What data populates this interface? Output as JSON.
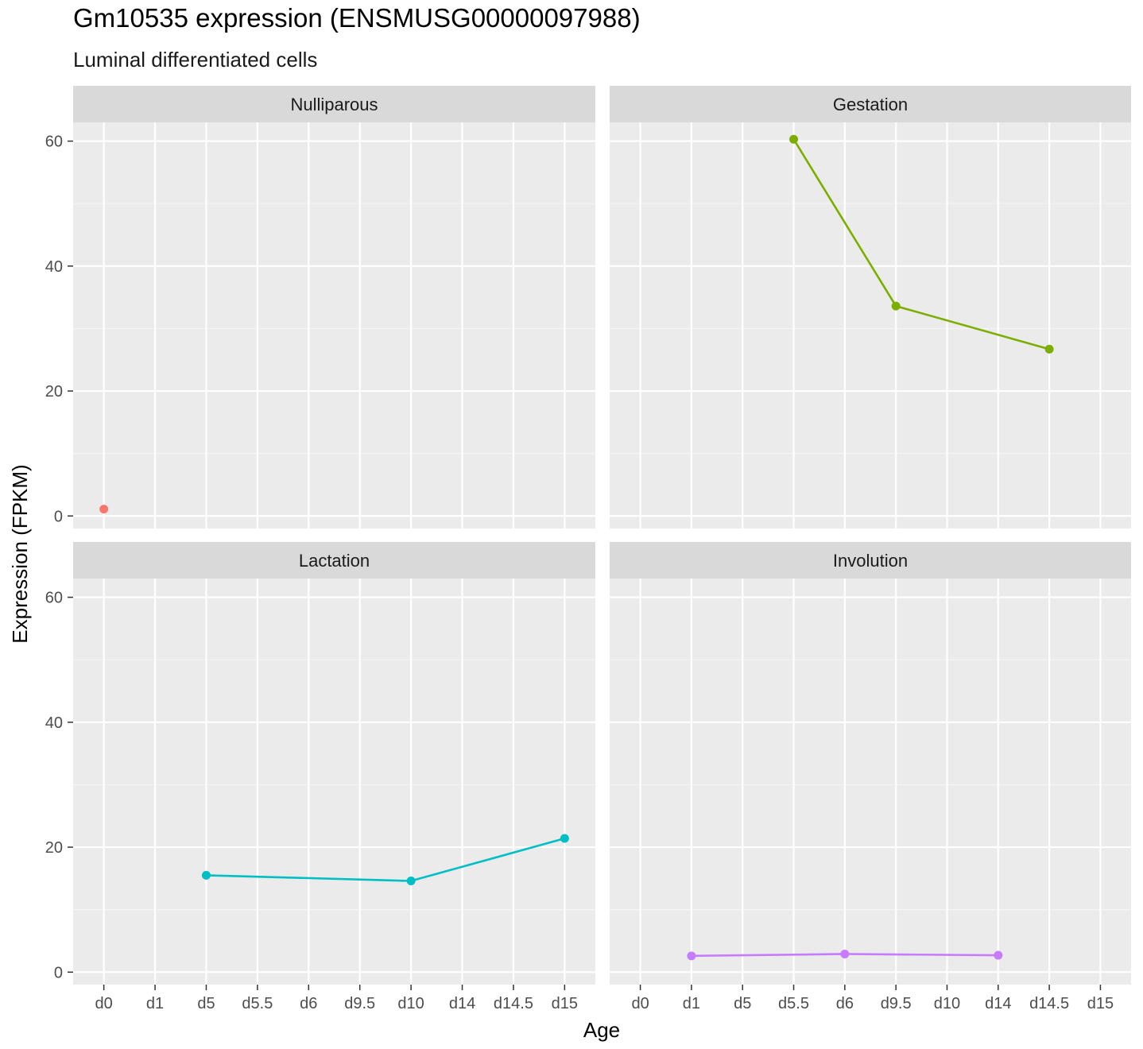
{
  "title": "Gm10535 expression (ENSMUSG00000097988)",
  "subtitle": "Luminal differentiated cells",
  "chart_data": {
    "type": "line",
    "xlabel": "Age",
    "ylabel": "Expression (FPKM)",
    "ylim": [
      -2,
      63
    ],
    "y_ticks": [
      0,
      20,
      40,
      60
    ],
    "categories": [
      "d0",
      "d1",
      "d5",
      "d5.5",
      "d6",
      "d9.5",
      "d10",
      "d14",
      "d14.5",
      "d15"
    ],
    "grid": true,
    "legend": "none",
    "facets": [
      {
        "name": "Nulliparous",
        "color": "#f8766d",
        "categories": [
          "d0",
          "d1",
          "d5",
          "d5.5",
          "d6",
          "d9.5",
          "d10",
          "d14",
          "d14.5",
          "d15"
        ],
        "points": [
          {
            "x": "d0",
            "y": 1.1
          }
        ]
      },
      {
        "name": "Gestation",
        "color": "#7cae00",
        "categories": [
          "d0",
          "d1",
          "d5",
          "d5.5",
          "d6",
          "d9.5",
          "d10",
          "d14",
          "d14.5",
          "d15"
        ],
        "points": [
          {
            "x": "d5.5",
            "y": 60.3
          },
          {
            "x": "d9.5",
            "y": 33.6
          },
          {
            "x": "d14.5",
            "y": 26.7
          }
        ]
      },
      {
        "name": "Lactation",
        "color": "#00bfc4",
        "categories": [
          "d0",
          "d1",
          "d5",
          "d5.5",
          "d6",
          "d9.5",
          "d10",
          "d14",
          "d14.5",
          "d15"
        ],
        "points": [
          {
            "x": "d5",
            "y": 15.5
          },
          {
            "x": "d10",
            "y": 14.6
          },
          {
            "x": "d15",
            "y": 21.4
          }
        ]
      },
      {
        "name": "Involution",
        "color": "#c77cff",
        "categories": [
          "d0",
          "d1",
          "d5",
          "d5.5",
          "d6",
          "d9.5",
          "d10",
          "d14",
          "d14.5",
          "d15"
        ],
        "points": [
          {
            "x": "d1",
            "y": 2.6
          },
          {
            "x": "d6",
            "y": 2.9
          },
          {
            "x": "d14",
            "y": 2.7
          }
        ]
      }
    ]
  }
}
